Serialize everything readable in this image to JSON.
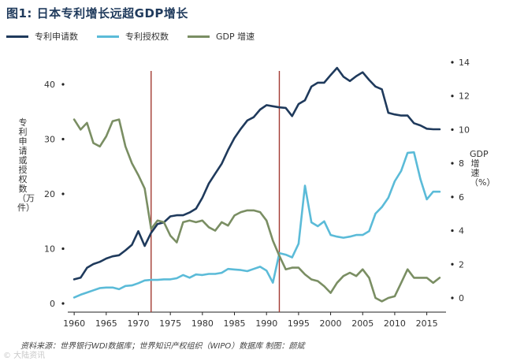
{
  "chart_data": {
    "type": "line",
    "title": "图1: 日本专利增长远超GDP增长",
    "source_text": "资料来源：世界银行WDI数据库；世界知识产权组织（WIPO）数据库      制图：颜斌",
    "watermark": "© 大陆资讯",
    "x_ticks": [
      1960,
      1965,
      1970,
      1975,
      1980,
      1985,
      1990,
      1995,
      2000,
      2005,
      2010,
      2015
    ],
    "x_range": [
      1959,
      2018
    ],
    "y_left": {
      "label": "专利申请或授权数（万件）",
      "range": [
        0,
        45
      ],
      "ticks": [
        0,
        10,
        20,
        30,
        40
      ]
    },
    "y_right": {
      "label": "GDP增速（%）",
      "range": [
        0,
        15
      ],
      "ticks": [
        0,
        2,
        4,
        6,
        8,
        10,
        12,
        14
      ]
    },
    "vlines": [
      1972,
      1992
    ],
    "series": [
      {
        "name": "专利申请数",
        "axis": "left",
        "color": "#1f3a5c",
        "x": [
          1960,
          1961,
          1962,
          1963,
          1964,
          1965,
          1966,
          1967,
          1968,
          1969,
          1970,
          1971,
          1972,
          1973,
          1974,
          1975,
          1976,
          1977,
          1978,
          1979,
          1980,
          1981,
          1982,
          1983,
          1984,
          1985,
          1986,
          1987,
          1988,
          1989,
          1990,
          1991,
          1992,
          1993,
          1994,
          1995,
          1996,
          1997,
          1998,
          1999,
          2000,
          2001,
          2002,
          2003,
          2004,
          2005,
          2006,
          2007,
          2008,
          2009,
          2010,
          2011,
          2012,
          2013,
          2014,
          2015,
          2016,
          2017
        ],
        "values": [
          4.4,
          4.7,
          6.5,
          7.2,
          7.6,
          8.2,
          8.6,
          8.8,
          9.7,
          10.7,
          13.2,
          10.5,
          12.9,
          14.5,
          14.8,
          15.9,
          16.1,
          16.1,
          16.6,
          17.3,
          19.3,
          21.9,
          23.7,
          25.5,
          28.0,
          30.2,
          31.9,
          33.4,
          34.0,
          35.4,
          36.2,
          36.0,
          35.8,
          35.7,
          34.2,
          36.4,
          37.1,
          39.6,
          40.3,
          40.3,
          41.7,
          43.0,
          41.4,
          40.6,
          41.5,
          42.2,
          40.8,
          39.6,
          39.1,
          34.8,
          34.5,
          34.3,
          34.3,
          32.9,
          32.5,
          31.9,
          31.8,
          31.8
        ]
      },
      {
        "name": "专利授权数",
        "axis": "left",
        "color": "#5bbbd8",
        "x": [
          1960,
          1961,
          1962,
          1963,
          1964,
          1965,
          1966,
          1967,
          1968,
          1969,
          1970,
          1971,
          1972,
          1973,
          1974,
          1975,
          1976,
          1977,
          1978,
          1979,
          1980,
          1981,
          1982,
          1983,
          1984,
          1985,
          1986,
          1987,
          1988,
          1989,
          1990,
          1991,
          1992,
          1993,
          1994,
          1995,
          1996,
          1997,
          1998,
          1999,
          2000,
          2001,
          2002,
          2003,
          2004,
          2005,
          2006,
          2007,
          2008,
          2009,
          2010,
          2011,
          2012,
          2013,
          2014,
          2015,
          2016,
          2017
        ],
        "values": [
          1.1,
          1.6,
          2.0,
          2.4,
          2.8,
          2.9,
          2.9,
          2.6,
          3.2,
          3.3,
          3.7,
          4.2,
          4.3,
          4.3,
          4.4,
          4.4,
          4.6,
          5.2,
          4.7,
          5.3,
          5.2,
          5.4,
          5.4,
          5.6,
          6.3,
          6.2,
          6.1,
          5.9,
          6.3,
          6.7,
          6.0,
          3.8,
          9.2,
          8.9,
          8.4,
          10.9,
          21.5,
          14.8,
          14.1,
          15.0,
          12.5,
          12.2,
          12.0,
          12.2,
          12.5,
          12.5,
          13.2,
          16.4,
          17.6,
          19.3,
          22.3,
          24.2,
          27.5,
          27.6,
          22.7,
          19.0,
          20.4,
          20.4
        ]
      },
      {
        "name": "GDP 增速",
        "axis": "right",
        "color": "#7a8e63",
        "x": [
          1960,
          1961,
          1962,
          1963,
          1964,
          1965,
          1966,
          1967,
          1968,
          1969,
          1970,
          1971,
          1972,
          1973,
          1974,
          1975,
          1976,
          1977,
          1978,
          1979,
          1980,
          1981,
          1982,
          1983,
          1984,
          1985,
          1986,
          1987,
          1988,
          1989,
          1990,
          1991,
          1992,
          1993,
          1994,
          1995,
          1996,
          1997,
          1998,
          1999,
          2000,
          2001,
          2002,
          2003,
          2004,
          2005,
          2006,
          2007,
          2008,
          2009,
          2010,
          2011,
          2012,
          2013,
          2014,
          2015,
          2016,
          2017
        ],
        "values": [
          10.6,
          10.0,
          10.4,
          9.2,
          9.0,
          9.6,
          10.5,
          10.6,
          9.0,
          8.0,
          7.3,
          6.5,
          4.1,
          4.6,
          4.5,
          3.7,
          3.3,
          4.5,
          4.6,
          4.5,
          4.6,
          4.2,
          4.0,
          4.5,
          4.3,
          4.9,
          5.1,
          5.2,
          5.2,
          5.1,
          4.6,
          3.4,
          2.5,
          1.7,
          1.8,
          1.8,
          1.4,
          1.1,
          1.0,
          0.7,
          0.3,
          0.9,
          1.3,
          1.5,
          1.3,
          1.7,
          1.2,
          0.0,
          -0.2,
          0.0,
          0.1,
          0.9,
          1.7,
          1.2,
          1.2,
          1.2,
          0.9,
          1.2
        ]
      }
    ]
  }
}
